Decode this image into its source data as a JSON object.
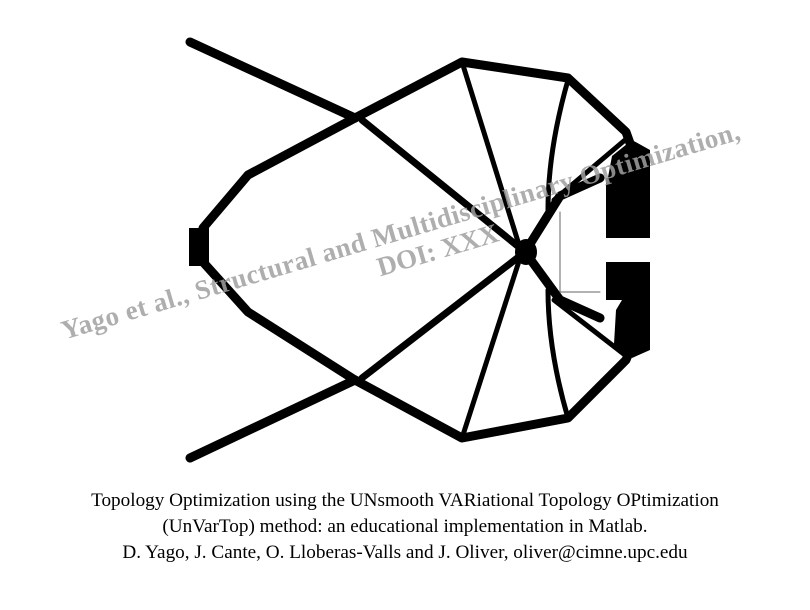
{
  "watermark": {
    "line1": "Yago et al., Structural and Multidisciplinary Optimization,",
    "line2": "DOI: XXX"
  },
  "caption": {
    "line1": "Topology Optimization using the UNsmooth VARiational Topology OPtimization",
    "line2": "(UnVarTop) method: an educational implementation in Matlab.",
    "line3": "D. Yago, J. Cante, O. Lloberas-Valls and J. Oliver, oliver@cimne.upc.edu"
  },
  "colors": {
    "structure": "#000000",
    "background": "#ffffff",
    "watermark": "#a0a0a0"
  }
}
